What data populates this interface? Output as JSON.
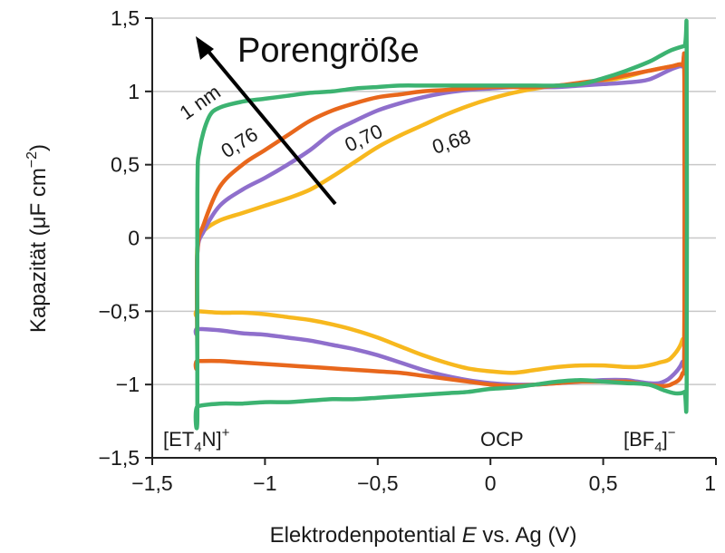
{
  "chart_data": {
    "type": "line",
    "xlabel": {
      "pre": "Elektrodenpotential ",
      "var": "E",
      "post": " vs. Ag (V)"
    },
    "ylabel": {
      "pre": "Kapazität (μF cm",
      "sup": "−2",
      "post": ")"
    },
    "xlim": [
      -1.5,
      1
    ],
    "ylim": [
      -1.5,
      1.5
    ],
    "xticks": [
      -1.5,
      -1,
      -0.5,
      0,
      0.5,
      1
    ],
    "xtick_labels": [
      "−1,5",
      "−1",
      "−0,5",
      "0",
      "0,5",
      "1"
    ],
    "yticks": [
      -1.5,
      -1,
      -0.5,
      0,
      0.5,
      1,
      1.5
    ],
    "ytick_labels": [
      "−1,5",
      "−1",
      "−0,5",
      "0",
      "0,5",
      "1",
      "1,5"
    ],
    "grid": "horizontal",
    "colors": {
      "1 nm": "#3cb371",
      "0,76": "#e8671c",
      "0,70": "#8f6fcc",
      "0,68": "#f7b81e"
    },
    "series": [
      {
        "name": "0,68",
        "color": "#f7b81e",
        "x": [
          -1.3,
          -1.3,
          -1.27,
          -1.2,
          -1.1,
          -1.0,
          -0.9,
          -0.8,
          -0.7,
          -0.6,
          -0.5,
          -0.4,
          -0.3,
          -0.2,
          -0.1,
          0.0,
          0.1,
          0.2,
          0.3,
          0.4,
          0.5,
          0.6,
          0.7,
          0.8,
          0.85,
          0.86,
          0.86,
          0.85,
          0.8,
          0.75,
          0.7,
          0.65,
          0.6,
          0.5,
          0.4,
          0.3,
          0.2,
          0.1,
          0.0,
          -0.1,
          -0.2,
          -0.3,
          -0.4,
          -0.5,
          -0.6,
          -0.7,
          -0.8,
          -0.9,
          -1.0,
          -1.1,
          -1.2,
          -1.3
        ],
        "y": [
          -0.5,
          -0.05,
          0.05,
          0.12,
          0.17,
          0.22,
          0.27,
          0.33,
          0.42,
          0.52,
          0.62,
          0.7,
          0.77,
          0.84,
          0.9,
          0.95,
          0.99,
          1.02,
          1.04,
          1.05,
          1.07,
          1.1,
          1.14,
          1.17,
          1.18,
          1.1,
          -0.5,
          -0.7,
          -0.82,
          -0.85,
          -0.87,
          -0.88,
          -0.88,
          -0.87,
          -0.87,
          -0.88,
          -0.9,
          -0.92,
          -0.91,
          -0.89,
          -0.85,
          -0.8,
          -0.74,
          -0.68,
          -0.63,
          -0.59,
          -0.56,
          -0.54,
          -0.52,
          -0.51,
          -0.51,
          -0.5
        ]
      },
      {
        "name": "0,70",
        "color": "#8f6fcc",
        "x": [
          -1.3,
          -1.3,
          -1.27,
          -1.2,
          -1.1,
          -1.0,
          -0.9,
          -0.8,
          -0.7,
          -0.6,
          -0.5,
          -0.4,
          -0.3,
          -0.2,
          -0.1,
          0.0,
          0.1,
          0.2,
          0.3,
          0.4,
          0.5,
          0.6,
          0.7,
          0.8,
          0.85,
          0.86,
          0.86,
          0.85,
          0.8,
          0.75,
          0.7,
          0.65,
          0.6,
          0.5,
          0.4,
          0.3,
          0.2,
          0.1,
          0.0,
          -0.1,
          -0.2,
          -0.3,
          -0.4,
          -0.5,
          -0.6,
          -0.7,
          -0.8,
          -0.9,
          -1.0,
          -1.1,
          -1.2,
          -1.3
        ],
        "y": [
          -0.62,
          -0.1,
          0.05,
          0.22,
          0.33,
          0.41,
          0.5,
          0.6,
          0.72,
          0.8,
          0.87,
          0.92,
          0.96,
          0.99,
          1.01,
          1.02,
          1.03,
          1.03,
          1.03,
          1.04,
          1.05,
          1.06,
          1.08,
          1.15,
          1.17,
          1.1,
          -0.7,
          -0.85,
          -0.95,
          -0.99,
          -0.99,
          -0.98,
          -0.97,
          -0.97,
          -0.98,
          -0.99,
          -1.0,
          -1.0,
          -0.99,
          -0.97,
          -0.94,
          -0.9,
          -0.85,
          -0.8,
          -0.76,
          -0.73,
          -0.7,
          -0.68,
          -0.66,
          -0.65,
          -0.63,
          -0.62
        ]
      },
      {
        "name": "0,76",
        "color": "#e8671c",
        "x": [
          -1.3,
          -1.3,
          -1.27,
          -1.2,
          -1.1,
          -1.0,
          -0.9,
          -0.8,
          -0.7,
          -0.6,
          -0.5,
          -0.4,
          -0.3,
          -0.2,
          -0.1,
          0.0,
          0.1,
          0.2,
          0.3,
          0.4,
          0.5,
          0.6,
          0.7,
          0.8,
          0.85,
          0.86,
          0.86,
          0.85,
          0.8,
          0.75,
          0.7,
          0.65,
          0.6,
          0.5,
          0.4,
          0.3,
          0.2,
          0.1,
          0.0,
          -0.1,
          -0.2,
          -0.3,
          -0.4,
          -0.5,
          -0.6,
          -0.7,
          -0.8,
          -0.9,
          -1.0,
          -1.1,
          -1.2,
          -1.3
        ],
        "y": [
          -0.84,
          -0.1,
          0.1,
          0.35,
          0.5,
          0.6,
          0.7,
          0.8,
          0.87,
          0.92,
          0.96,
          0.98,
          1.0,
          1.01,
          1.02,
          1.03,
          1.03,
          1.03,
          1.04,
          1.06,
          1.08,
          1.11,
          1.14,
          1.17,
          1.18,
          1.1,
          -0.7,
          -0.93,
          -1.0,
          -1.01,
          -1.0,
          -0.99,
          -0.98,
          -0.98,
          -0.98,
          -0.99,
          -1.0,
          -1.01,
          -1.0,
          -0.98,
          -0.96,
          -0.94,
          -0.92,
          -0.91,
          -0.9,
          -0.89,
          -0.88,
          -0.87,
          -0.86,
          -0.85,
          -0.84,
          -0.84
        ]
      },
      {
        "name": "1 nm",
        "color": "#3cb371",
        "x": [
          -1.3,
          -1.3,
          -1.29,
          -1.25,
          -1.2,
          -1.1,
          -1.0,
          -0.9,
          -0.8,
          -0.7,
          -0.6,
          -0.5,
          -0.4,
          -0.3,
          -0.2,
          -0.1,
          0.0,
          0.1,
          0.2,
          0.3,
          0.4,
          0.5,
          0.6,
          0.7,
          0.75,
          0.8,
          0.86,
          0.87,
          0.87,
          0.86,
          0.82,
          0.77,
          0.7,
          0.6,
          0.5,
          0.4,
          0.3,
          0.2,
          0.1,
          0.0,
          -0.1,
          -0.2,
          -0.3,
          -0.4,
          -0.5,
          -0.6,
          -0.7,
          -0.8,
          -0.9,
          -1.0,
          -1.1,
          -1.2,
          -1.3
        ],
        "y": [
          -1.2,
          0.3,
          0.6,
          0.82,
          0.89,
          0.93,
          0.95,
          0.97,
          0.99,
          1.0,
          1.02,
          1.03,
          1.04,
          1.04,
          1.04,
          1.04,
          1.04,
          1.04,
          1.04,
          1.04,
          1.05,
          1.09,
          1.14,
          1.2,
          1.24,
          1.28,
          1.31,
          1.31,
          -1.0,
          -1.05,
          -1.06,
          -1.04,
          -1.0,
          -0.99,
          -0.98,
          -0.97,
          -0.98,
          -1.0,
          -1.02,
          -1.03,
          -1.05,
          -1.06,
          -1.07,
          -1.08,
          -1.09,
          -1.1,
          -1.1,
          -1.11,
          -1.12,
          -1.12,
          -1.13,
          -1.13,
          -1.15
        ]
      }
    ],
    "annotations": {
      "arrow_label": "Porengröße",
      "labels": [
        "1 nm",
        "0,76",
        "0,70",
        "0,68"
      ],
      "cation": {
        "pre": "[ET",
        "sub": "4",
        "post": "N]",
        "sup": "+"
      },
      "ocp": "OCP",
      "anion": {
        "pre": "[BF",
        "sub": "4",
        "post": "]",
        "sup": "−"
      }
    }
  }
}
